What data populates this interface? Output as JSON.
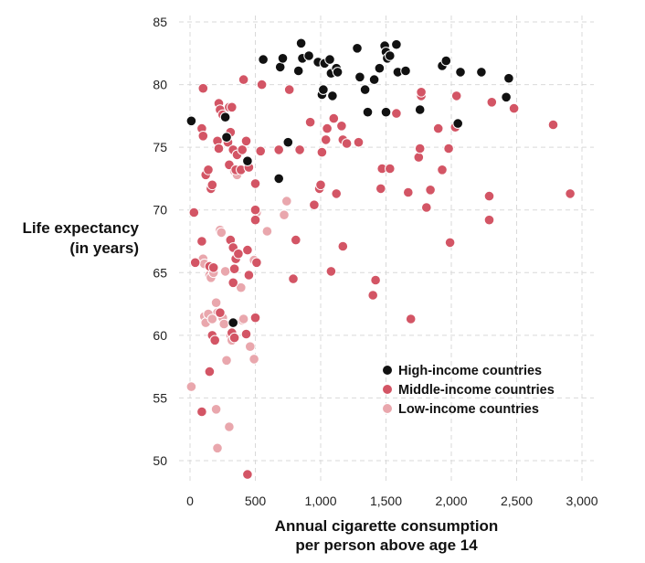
{
  "chart_data": {
    "type": "scatter",
    "xlabel": [
      "Annual cigarette consumption",
      "per person above age 14"
    ],
    "ylabel": [
      "Life expectancy",
      "(in years)"
    ],
    "xlim": [
      -100,
      3050
    ],
    "ylim": [
      48.5,
      86
    ],
    "xticks": [
      0,
      500,
      1000,
      1500,
      2000,
      2500,
      3000
    ],
    "xtick_labels": [
      "0",
      "500",
      "1,000",
      "1,500",
      "2,000",
      "2,500",
      "3,000"
    ],
    "yticks": [
      50,
      55,
      60,
      65,
      70,
      75,
      80,
      85
    ],
    "ytick_labels": [
      "50",
      "55",
      "60",
      "65",
      "70",
      "75",
      "80",
      "85"
    ],
    "grid": true,
    "legend_position": "bottom-right",
    "series": [
      {
        "name": "High-income countries",
        "color": "#111111",
        "points": [
          [
            10,
            77.1
          ],
          [
            280,
            75.8
          ],
          [
            270,
            77.4
          ],
          [
            440,
            73.9
          ],
          [
            560,
            82
          ],
          [
            690,
            81.4
          ],
          [
            710,
            82.1
          ],
          [
            750,
            75.4
          ],
          [
            680,
            72.5
          ],
          [
            830,
            81.1
          ],
          [
            850,
            83.3
          ],
          [
            860,
            82.1
          ],
          [
            910,
            82.3
          ],
          [
            980,
            81.8
          ],
          [
            1010,
            79.2
          ],
          [
            1020,
            79.6
          ],
          [
            1030,
            81.7
          ],
          [
            1070,
            82
          ],
          [
            1080,
            80.9
          ],
          [
            1090,
            79.1
          ],
          [
            1120,
            81.3
          ],
          [
            1130,
            81
          ],
          [
            1280,
            82.9
          ],
          [
            1300,
            80.6
          ],
          [
            1340,
            79.6
          ],
          [
            1360,
            77.8
          ],
          [
            1410,
            80.4
          ],
          [
            1450,
            81.3
          ],
          [
            1490,
            83.1
          ],
          [
            1500,
            82.6
          ],
          [
            1510,
            82.1
          ],
          [
            1530,
            82.3
          ],
          [
            1500,
            77.8
          ],
          [
            1580,
            83.2
          ],
          [
            1590,
            81
          ],
          [
            1650,
            81.1
          ],
          [
            1760,
            78
          ],
          [
            1930,
            81.5
          ],
          [
            1960,
            81.9
          ],
          [
            2050,
            76.9
          ],
          [
            2070,
            81
          ],
          [
            2230,
            81
          ],
          [
            2420,
            79
          ],
          [
            2440,
            80.5
          ],
          [
            330,
            61
          ]
        ]
      },
      {
        "name": "Middle-income countries",
        "color": "#d35565",
        "points": [
          [
            100,
            79.7
          ],
          [
            90,
            76.5
          ],
          [
            100,
            75.9
          ],
          [
            120,
            72.8
          ],
          [
            140,
            73.2
          ],
          [
            160,
            71.7
          ],
          [
            170,
            72
          ],
          [
            220,
            78.5
          ],
          [
            230,
            78
          ],
          [
            250,
            77.6
          ],
          [
            300,
            78.2
          ],
          [
            320,
            78.2
          ],
          [
            210,
            75.5
          ],
          [
            220,
            74.9
          ],
          [
            290,
            75.4
          ],
          [
            310,
            76.2
          ],
          [
            300,
            73.6
          ],
          [
            330,
            74.8
          ],
          [
            350,
            73.2
          ],
          [
            360,
            74.4
          ],
          [
            390,
            73.2
          ],
          [
            400,
            74.8
          ],
          [
            410,
            80.4
          ],
          [
            430,
            75.5
          ],
          [
            450,
            73.4
          ],
          [
            500,
            72.1
          ],
          [
            540,
            74.7
          ],
          [
            550,
            80
          ],
          [
            680,
            74.8
          ],
          [
            760,
            79.6
          ],
          [
            840,
            74.8
          ],
          [
            920,
            77
          ],
          [
            990,
            71.7
          ],
          [
            1000,
            72
          ],
          [
            1010,
            74.6
          ],
          [
            1040,
            75.6
          ],
          [
            1050,
            76.5
          ],
          [
            1100,
            77.3
          ],
          [
            1120,
            71.3
          ],
          [
            1160,
            76.7
          ],
          [
            1170,
            75.6
          ],
          [
            1200,
            75.3
          ],
          [
            1290,
            75.4
          ],
          [
            1460,
            71.7
          ],
          [
            1470,
            73.3
          ],
          [
            1530,
            73.3
          ],
          [
            1580,
            77.7
          ],
          [
            1670,
            71.4
          ],
          [
            1750,
            74.2
          ],
          [
            1760,
            74.9
          ],
          [
            1770,
            79.1
          ],
          [
            1770,
            79.4
          ],
          [
            1810,
            70.2
          ],
          [
            1840,
            71.6
          ],
          [
            1900,
            76.5
          ],
          [
            1930,
            73.2
          ],
          [
            1980,
            74.9
          ],
          [
            2030,
            76.6
          ],
          [
            2040,
            79.1
          ],
          [
            2290,
            71.1
          ],
          [
            2290,
            69.2
          ],
          [
            2310,
            78.6
          ],
          [
            2480,
            78.1
          ],
          [
            2780,
            76.8
          ],
          [
            2910,
            71.3
          ],
          [
            30,
            69.8
          ],
          [
            40,
            65.8
          ],
          [
            90,
            67.5
          ],
          [
            150,
            65.5
          ],
          [
            180,
            65.4
          ],
          [
            310,
            67.6
          ],
          [
            330,
            67
          ],
          [
            340,
            65.3
          ],
          [
            330,
            64.2
          ],
          [
            350,
            66.1
          ],
          [
            370,
            66.5
          ],
          [
            440,
            66.8
          ],
          [
            450,
            64.8
          ],
          [
            500,
            70
          ],
          [
            500,
            69.2
          ],
          [
            510,
            65.8
          ],
          [
            810,
            67.6
          ],
          [
            790,
            64.5
          ],
          [
            950,
            70.4
          ],
          [
            1080,
            65.1
          ],
          [
            1170,
            67.1
          ],
          [
            1400,
            63.2
          ],
          [
            1420,
            64.4
          ],
          [
            1690,
            61.3
          ],
          [
            1990,
            67.4
          ],
          [
            90,
            53.9
          ],
          [
            150,
            57.1
          ],
          [
            170,
            60
          ],
          [
            190,
            59.6
          ],
          [
            230,
            61.8
          ],
          [
            320,
            60.2
          ],
          [
            340,
            59.8
          ],
          [
            430,
            60.1
          ],
          [
            500,
            61.4
          ],
          [
            440,
            48.9
          ]
        ]
      },
      {
        "name": "Low-income countries",
        "color": "#e9a7ad",
        "points": [
          [
            10,
            55.9
          ],
          [
            100,
            66.1
          ],
          [
            110,
            65.7
          ],
          [
            110,
            61.5
          ],
          [
            120,
            61
          ],
          [
            150,
            64.8
          ],
          [
            160,
            64.6
          ],
          [
            180,
            65
          ],
          [
            200,
            62.6
          ],
          [
            210,
            61.8
          ],
          [
            230,
            68.4
          ],
          [
            240,
            68.2
          ],
          [
            240,
            61.5
          ],
          [
            250,
            61.4
          ],
          [
            260,
            60.9
          ],
          [
            270,
            65.1
          ],
          [
            280,
            58
          ],
          [
            310,
            60
          ],
          [
            320,
            59.6
          ],
          [
            340,
            73.1
          ],
          [
            360,
            72.8
          ],
          [
            390,
            63.8
          ],
          [
            400,
            61.2
          ],
          [
            410,
            61.3
          ],
          [
            460,
            59.1
          ],
          [
            490,
            58.1
          ],
          [
            490,
            66
          ],
          [
            510,
            69.8
          ],
          [
            590,
            68.3
          ],
          [
            720,
            69.6
          ],
          [
            740,
            70.7
          ],
          [
            1000,
            71.8
          ],
          [
            200,
            54.1
          ],
          [
            210,
            51
          ],
          [
            300,
            52.7
          ],
          [
            140,
            61.7
          ],
          [
            170,
            61.3
          ]
        ]
      }
    ]
  }
}
